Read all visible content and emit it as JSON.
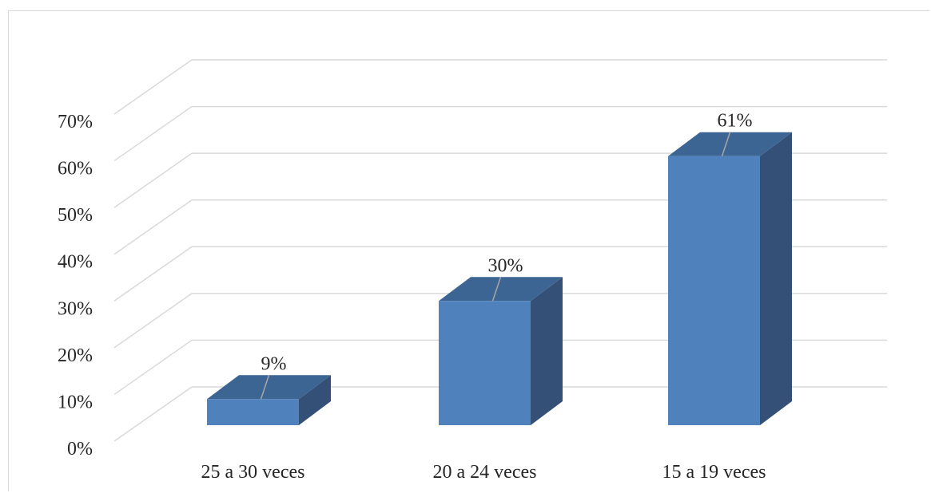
{
  "chart_data": {
    "type": "bar",
    "style": "3d-column",
    "categories": [
      "25 a 30 veces",
      "20 a 24 veces",
      "15 a 19 veces"
    ],
    "values": [
      9,
      30,
      61
    ],
    "data_labels": [
      "9%",
      "30%",
      "61%"
    ],
    "y_ticks": [
      "0%",
      "10%",
      "20%",
      "30%",
      "40%",
      "50%",
      "60%",
      "70%"
    ],
    "ylim": [
      0,
      70
    ],
    "y_unit": "%",
    "grid": true,
    "legend": "none",
    "colors": {
      "bar_front": "#4f81bd",
      "bar_top": "#3d6594",
      "bar_side": "#345077",
      "gridline": "#d9d9d9",
      "leader_line": "#a6a6a6"
    }
  }
}
